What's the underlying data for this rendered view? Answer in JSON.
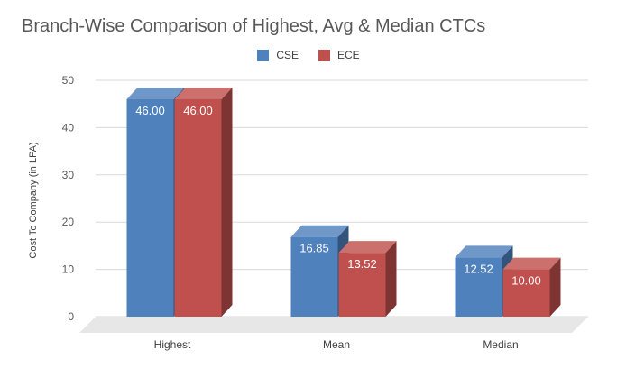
{
  "chart_data": {
    "type": "bar",
    "title": "Branch-Wise Comparison of Highest, Avg & Median CTCs",
    "xlabel": "",
    "ylabel": "Cost To Company (in LPA)",
    "categories": [
      "Highest",
      "Mean",
      "Median"
    ],
    "series": [
      {
        "name": "CSE",
        "values": [
          46.0,
          16.85,
          12.52
        ],
        "labels": [
          "46.00",
          "16.85",
          "12.52"
        ],
        "color": "#4f81bd"
      },
      {
        "name": "ECE",
        "values": [
          46.0,
          13.52,
          10.0
        ],
        "labels": [
          "46.00",
          "13.52",
          "10.00"
        ],
        "color": "#c0504d"
      }
    ],
    "ylim": [
      0,
      50
    ],
    "yticks": [
      0,
      10,
      20,
      30,
      40,
      50
    ],
    "grid": true,
    "legend": "top-center",
    "style": "3d-clustered-column"
  }
}
